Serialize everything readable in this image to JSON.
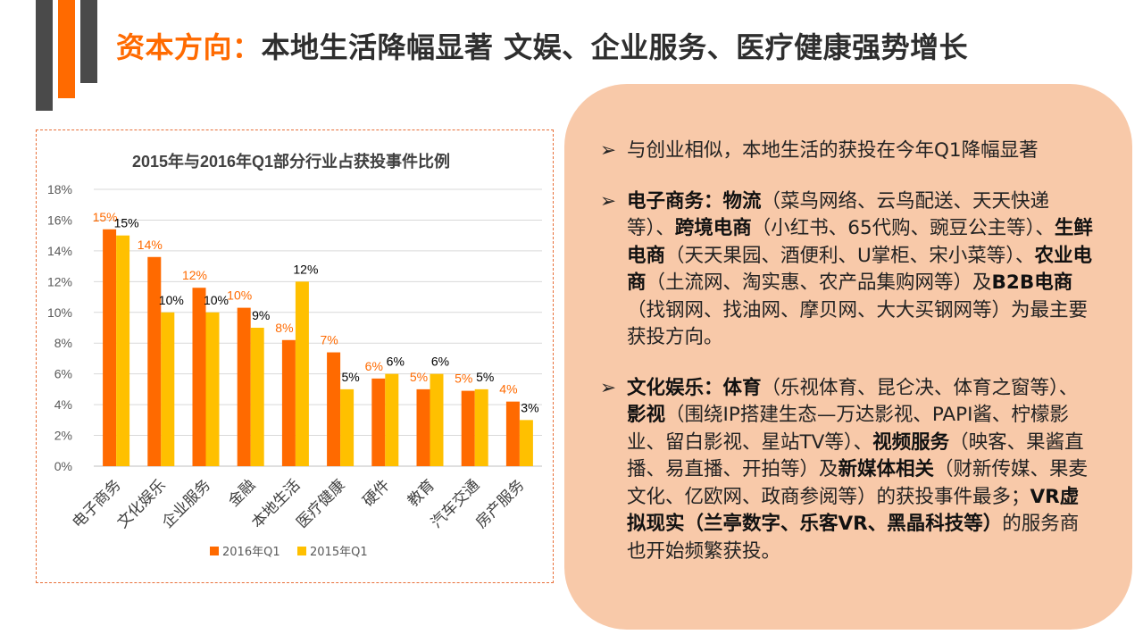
{
  "header": {
    "title_accent": "资本方向：",
    "title_main": "本地生活降幅显著   文娱、企业服务、医疗健康强势增长"
  },
  "colors": {
    "accent": "#ff6a00",
    "series_2016": "#ff6a00",
    "series_2015": "#ffc000",
    "panel_bg": "#f8c9a9",
    "frame_border": "#e8703a"
  },
  "chart_data": {
    "type": "bar",
    "title": "2015年与2016年Q1部分行业占获投事件比例",
    "categories": [
      "电子商务",
      "文化娱乐",
      "企业服务",
      "金融",
      "本地生活",
      "医疗健康",
      "硬件",
      "教育",
      "汽车交通",
      "房产服务"
    ],
    "series": [
      {
        "name": "2016年Q1",
        "values": [
          15.4,
          13.6,
          11.6,
          10.3,
          8.2,
          7.4,
          5.7,
          5.0,
          4.9,
          4.2
        ],
        "labels": [
          "15%",
          "14%",
          "12%",
          "10%",
          "8%",
          "7%",
          "6%",
          "5%",
          "5%",
          "4%"
        ]
      },
      {
        "name": "2015年Q1",
        "values": [
          15.0,
          10.0,
          10.0,
          9.0,
          12.0,
          5.0,
          6.0,
          6.0,
          5.0,
          3.0
        ],
        "labels": [
          "15%",
          "10%",
          "10%",
          "9%",
          "12%",
          "5%",
          "6%",
          "6%",
          "5%",
          "3%"
        ]
      }
    ],
    "ylim": [
      0,
      18
    ],
    "yticks": [
      "0%",
      "2%",
      "4%",
      "6%",
      "8%",
      "10%",
      "12%",
      "14%",
      "16%",
      "18%"
    ],
    "ytick_values": [
      0,
      2,
      4,
      6,
      8,
      10,
      12,
      14,
      16,
      18
    ],
    "grid": true,
    "legend_position": "bottom"
  },
  "panel": {
    "arrow": "➢",
    "bullets": [
      [
        {
          "t": "与创业相似，本地生活的获投在今年Q1降幅显著",
          "b": false
        }
      ],
      [
        {
          "t": "电子商务：物流",
          "b": true
        },
        {
          "t": "（菜鸟网络、云鸟配送、天天快递等）、",
          "b": false
        },
        {
          "t": "跨境电商",
          "b": true
        },
        {
          "t": "（小红书、65代购、豌豆公主等）、",
          "b": false
        },
        {
          "t": "生鲜电商",
          "b": true
        },
        {
          "t": "（天天果园、酒便利、U掌柜、宋小菜等）、",
          "b": false
        },
        {
          "t": "农业电商",
          "b": true
        },
        {
          "t": "（土流网、淘实惠、农产品集购网等）及",
          "b": false
        },
        {
          "t": "B2B电商",
          "b": true
        },
        {
          "t": "（找钢网、找油网、摩贝网、大大买钢网等）为最主要获投方向。",
          "b": false
        }
      ],
      [
        {
          "t": "文化娱乐：体育",
          "b": true
        },
        {
          "t": "（乐视体育、昆仑决、体育之窗等）、",
          "b": false
        },
        {
          "t": "影视",
          "b": true
        },
        {
          "t": "（围绕IP搭建生态—万达影视、PAPI酱、柠檬影业、留白影视、星站TV等）、",
          "b": false
        },
        {
          "t": "视频服务",
          "b": true
        },
        {
          "t": "（映客、果酱直播、易直播、开拍等）及",
          "b": false
        },
        {
          "t": "新媒体相关",
          "b": true
        },
        {
          "t": "（财新传媒、果麦文化、亿欧网、政商参阅等）的获投事件最多；",
          "b": false
        },
        {
          "t": "VR虚拟现实（兰亭数字、乐客VR、黑晶科技等）",
          "b": true
        },
        {
          "t": "的服务商也开始频繁获投。",
          "b": false
        }
      ]
    ]
  }
}
